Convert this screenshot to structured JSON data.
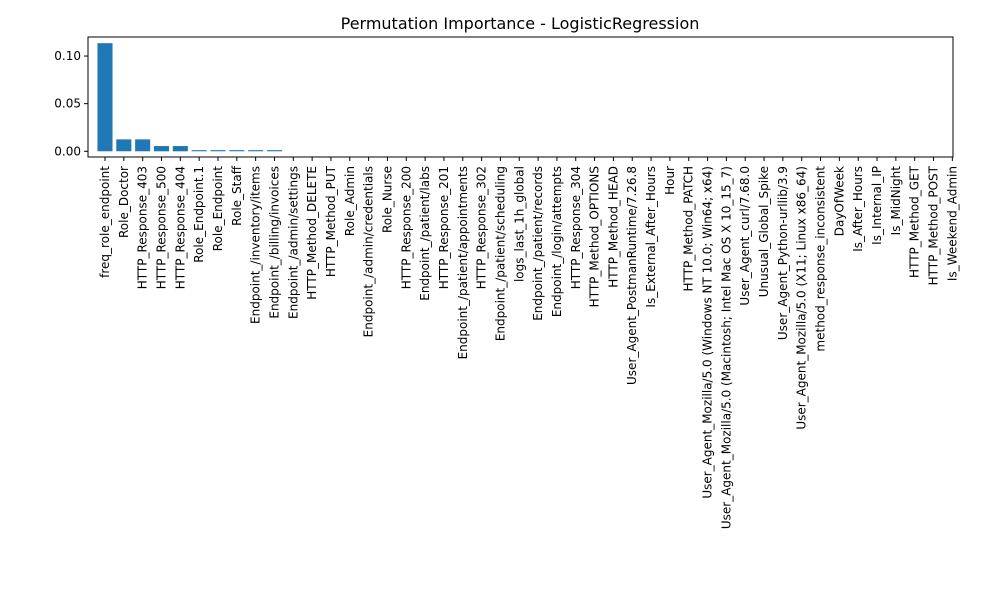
{
  "chart_data": {
    "type": "bar",
    "title": "Permutation Importance - LogisticRegression",
    "xlabel": "",
    "ylabel": "",
    "ylim": [
      -0.006,
      0.12
    ],
    "yticks": [
      0.0,
      0.05,
      0.1
    ],
    "ytick_labels": [
      "0.00",
      "0.05",
      "0.10"
    ],
    "grid": false,
    "bar_color": "#1f77b4",
    "categories": [
      "freq_role_endpoint",
      "Role_Doctor",
      "HTTP_Response_403",
      "HTTP_Response_500",
      "HTTP_Response_404",
      "Role_Endpoint.1",
      "Role_Endpoint",
      "Role_Staff",
      "Endpoint_/inventory/items",
      "Endpoint_/billing/invoices",
      "Endpoint_/admin/settings",
      "HTTP_Method_DELETE",
      "HTTP_Method_PUT",
      "Role_Admin",
      "Endpoint_/admin/credentials",
      "Role_Nurse",
      "HTTP_Response_200",
      "Endpoint_/patient/labs",
      "HTTP_Response_201",
      "Endpoint_/patient/appointments",
      "HTTP_Response_302",
      "Endpoint_/patient/scheduling",
      "logs_last_1h_global",
      "Endpoint_/patient/records",
      "Endpoint_/login/attempts",
      "HTTP_Response_304",
      "HTTP_Method_OPTIONS",
      "HTTP_Method_HEAD",
      "User_Agent_PostmanRuntime/7.26.8",
      "Is_External_After_Hours",
      "Hour",
      "HTTP_Method_PATCH",
      "User_Agent_Mozilla/5.0 (Windows NT 10.0; Win64; x64)",
      "User_Agent_Mozilla/5.0 (Macintosh; Intel Mac OS X 10_15_7)",
      "User_Agent_curl/7.68.0",
      "Unusual_Global_Spike",
      "User_Agent_Python-urllib/3.9",
      "User_Agent_Mozilla/5.0 (X11; Linux x86_64)",
      "method_response_inconsistent",
      "DayOfWeek",
      "Is_After_Hours",
      "Is_Internal_IP",
      "Is_MidNight",
      "HTTP_Method_GET",
      "HTTP_Method_POST",
      "Is_Weekend_Admin"
    ],
    "values": [
      0.1135,
      0.0125,
      0.0125,
      0.0055,
      0.0055,
      0.0012,
      0.0012,
      0.0012,
      0.0012,
      0.0012,
      0,
      0,
      0,
      0,
      0,
      0,
      0,
      0,
      0,
      0,
      0,
      0,
      0,
      0,
      0,
      0,
      0,
      0,
      0,
      0,
      0,
      0,
      0,
      0,
      0,
      0,
      0,
      0,
      0,
      0,
      0,
      0,
      0,
      0,
      0,
      0
    ]
  }
}
